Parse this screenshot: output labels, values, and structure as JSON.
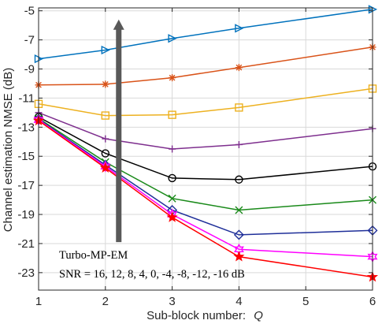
{
  "chart_data": {
    "type": "line",
    "xlabel": "Sub-block number:",
    "xlabel_var": "Q",
    "ylabel": "Channel estimation NMSE (dB)",
    "xlim": [
      1,
      6
    ],
    "ylim": [
      -24.2,
      -4.8
    ],
    "x_ticks": [
      1,
      2,
      3,
      4,
      5,
      6
    ],
    "y_ticks": [
      -5,
      -7,
      -9,
      -11,
      -13,
      -15,
      -17,
      -19,
      -21,
      -23
    ],
    "grid": true,
    "annotation": {
      "line1": "Turbo-MP-EM",
      "line2": "SNR = 16, 12, 8, 4, 0, -4, -8, -12, -16 dB"
    },
    "x": [
      1,
      2,
      3,
      4,
      6
    ],
    "series": [
      {
        "color": "#0072BD",
        "marker": "triangle-right",
        "values": [
          -8.3,
          -7.7,
          -6.9,
          -6.2,
          -4.9
        ]
      },
      {
        "color": "#D95319",
        "marker": "asterisk",
        "values": [
          -10.1,
          -10.05,
          -9.6,
          -8.9,
          -7.5
        ]
      },
      {
        "color": "#EDB120",
        "marker": "square",
        "values": [
          -11.4,
          -12.2,
          -12.15,
          -11.65,
          -10.35
        ]
      },
      {
        "color": "#7E2F8E",
        "marker": "plus",
        "values": [
          -12.0,
          -13.8,
          -14.5,
          -14.2,
          -13.1
        ]
      },
      {
        "color": "#000000",
        "marker": "circle",
        "values": [
          -12.3,
          -14.8,
          -16.5,
          -16.6,
          -15.7
        ]
      },
      {
        "color": "#1A8A1A",
        "marker": "x",
        "values": [
          -12.4,
          -15.4,
          -17.9,
          -18.7,
          -18.0
        ]
      },
      {
        "color": "#1F2F99",
        "marker": "diamond",
        "values": [
          -12.45,
          -15.6,
          -18.7,
          -20.4,
          -20.1
        ]
      },
      {
        "color": "#FF00FF",
        "marker": "hexagram",
        "values": [
          -12.5,
          -15.7,
          -19.0,
          -21.4,
          -21.9
        ]
      },
      {
        "color": "#FF0000",
        "marker": "pentagram",
        "values": [
          -12.55,
          -15.8,
          -19.2,
          -21.9,
          -23.3
        ]
      }
    ],
    "arrow": {
      "x": 2.2,
      "y_from": -20.9,
      "y_to": -5.6,
      "color": "#595959"
    }
  }
}
